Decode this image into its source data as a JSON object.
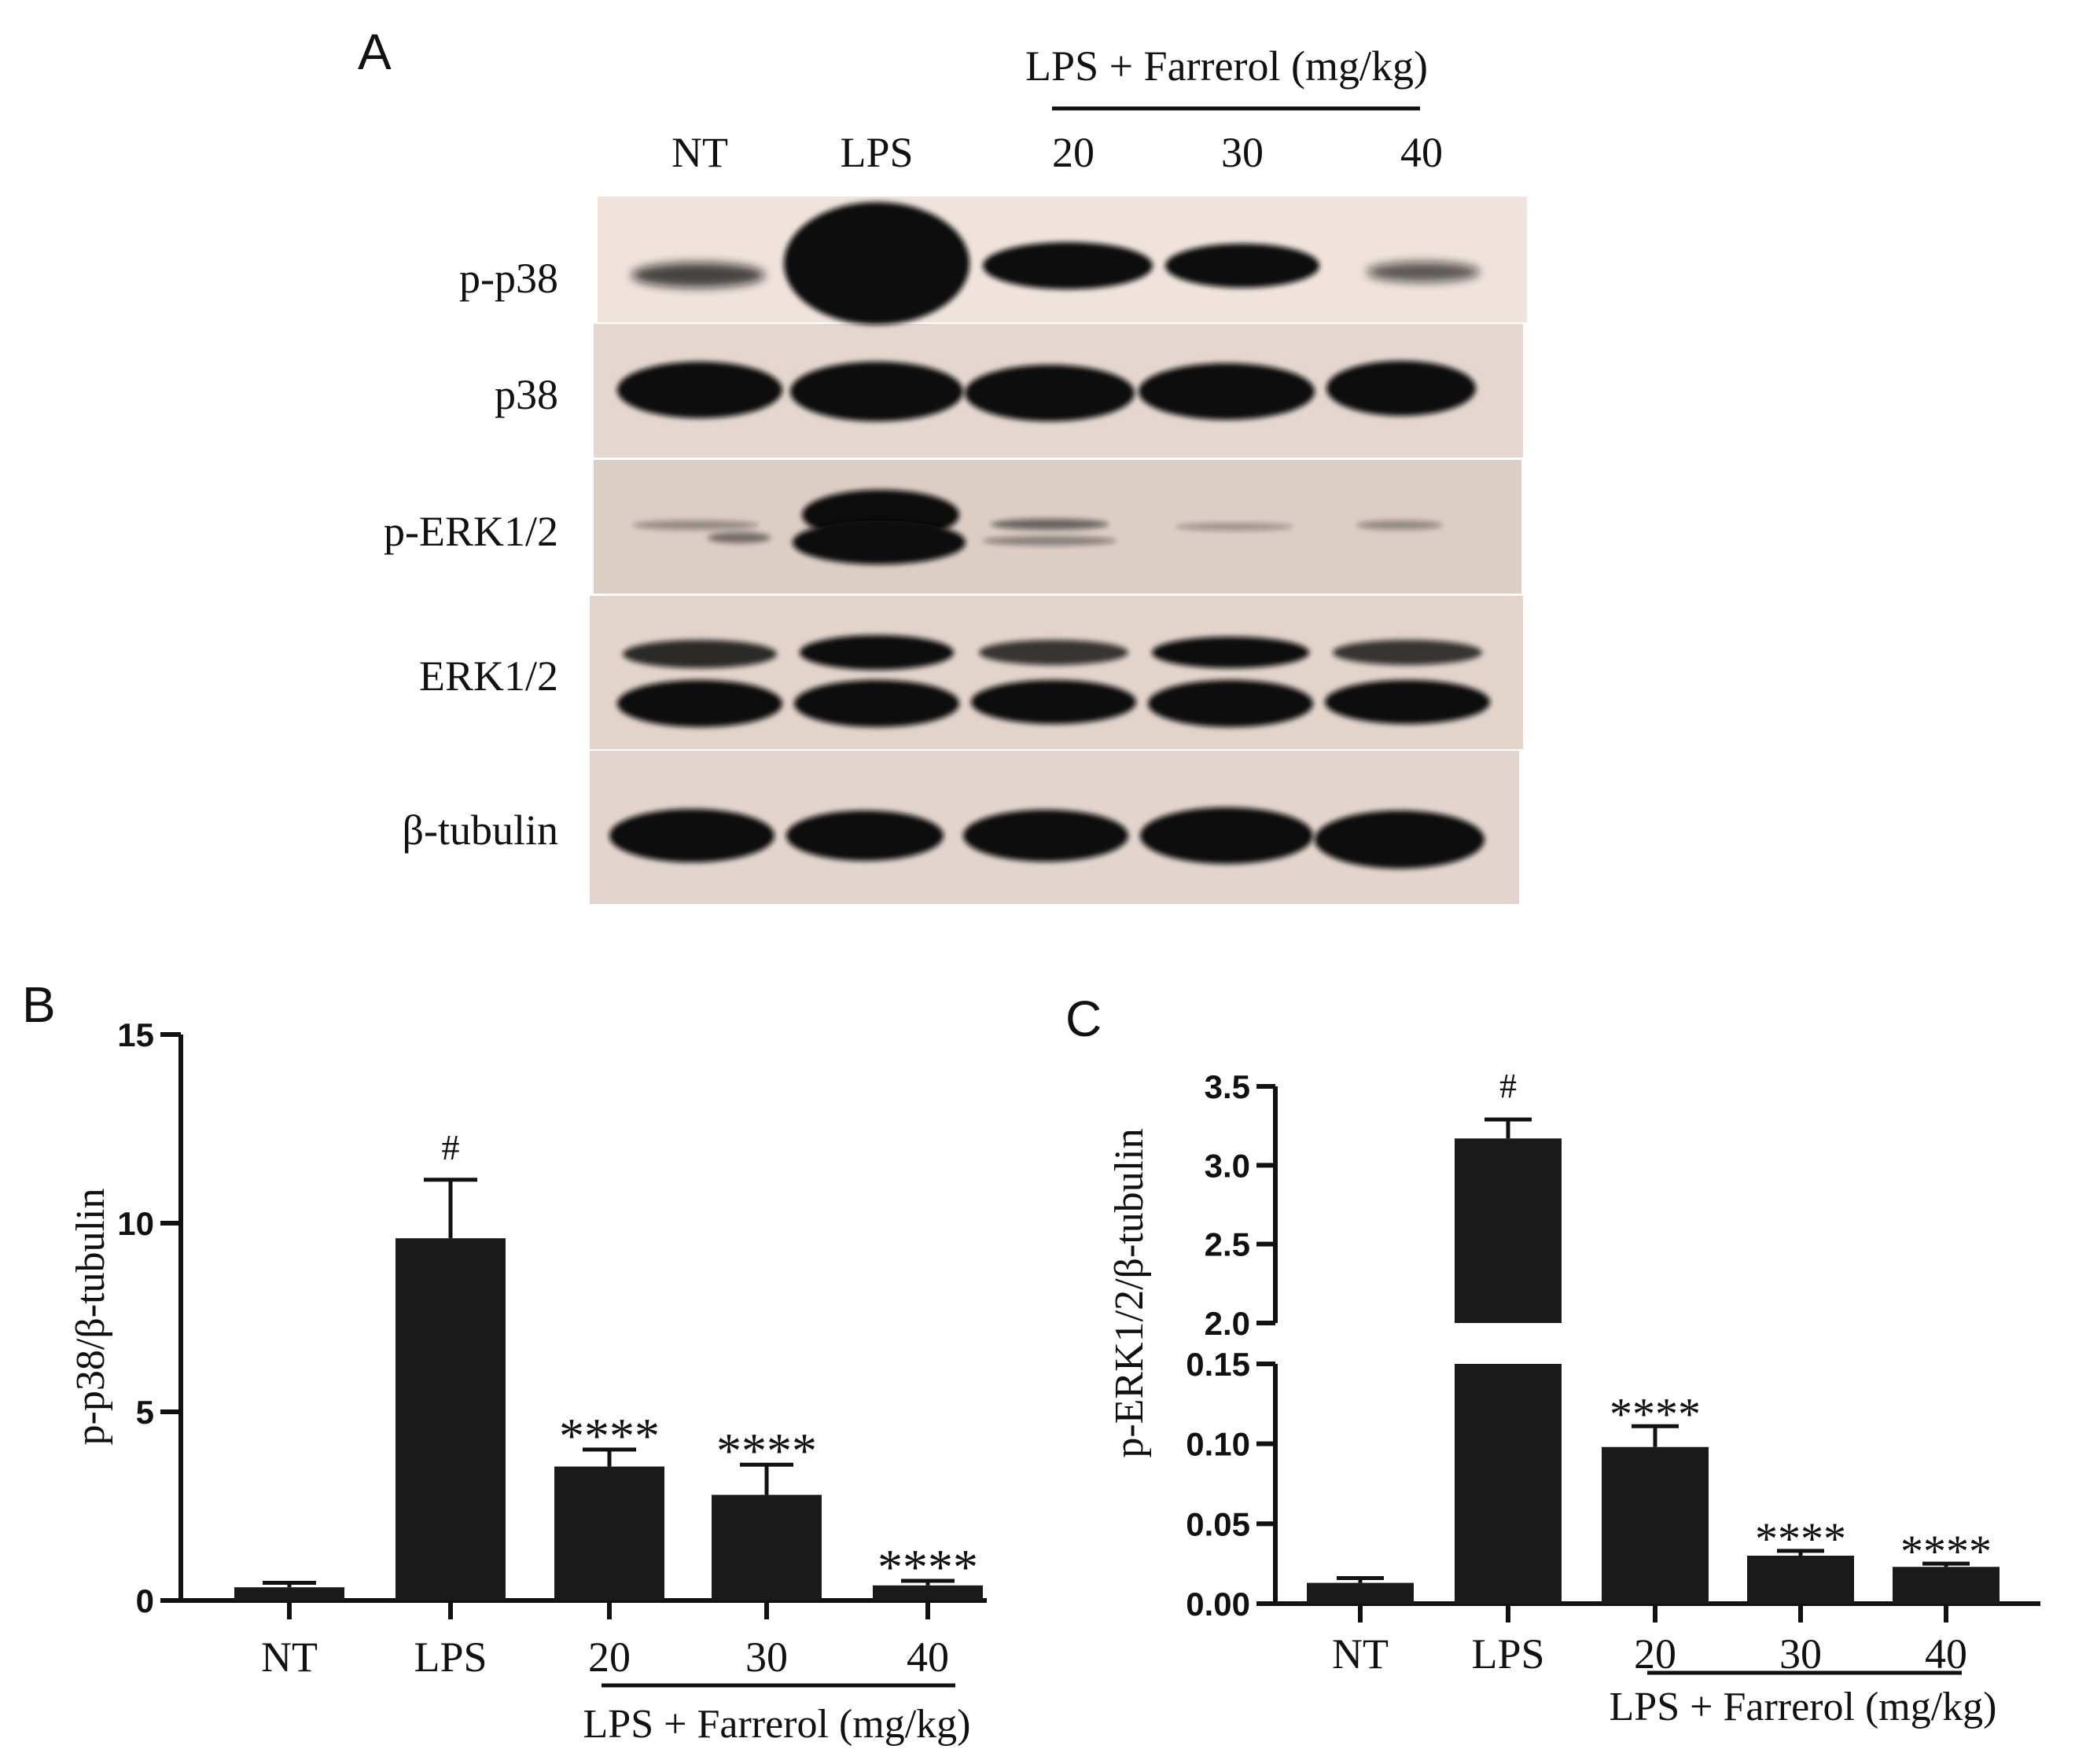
{
  "panel_a": {
    "letter": "A",
    "group_label": "LPS + Farrerol (mg/kg)",
    "lanes": [
      "NT",
      "LPS",
      "20",
      "30",
      "40"
    ],
    "rows": [
      "p-p38",
      "p38",
      "p-ERK1/2",
      "ERK1/2",
      "β-tubulin"
    ],
    "colors": {
      "membrane": "#e8d9d0",
      "band": "#0b0b0b"
    }
  },
  "chart_data": [
    {
      "panel": "B",
      "type": "bar",
      "categories": [
        "NT",
        "LPS",
        "20",
        "30",
        "40"
      ],
      "values": [
        0.35,
        9.6,
        3.55,
        2.8,
        0.4
      ],
      "errors": [
        0.12,
        1.55,
        0.45,
        0.8,
        0.12
      ],
      "significance": [
        "",
        "#",
        "****",
        "****",
        "****"
      ],
      "ylabel": "p-p38/β-tubulin",
      "xlabel": "LPS + Farrerol (mg/kg)",
      "ylim": [
        0,
        15
      ],
      "yticks": [
        "0",
        "5",
        "10",
        "15"
      ],
      "bar_color": "#1a1a1a",
      "grid": false
    },
    {
      "panel": "C",
      "type": "bar",
      "categories": [
        "NT",
        "LPS",
        "20",
        "30",
        "40"
      ],
      "values": [
        0.013,
        3.17,
        0.098,
        0.03,
        0.023
      ],
      "errors": [
        0.003,
        0.12,
        0.013,
        0.003,
        0.002
      ],
      "significance": [
        "",
        "#",
        "****",
        "****",
        "****"
      ],
      "ylabel": "p-ERK1/2/β-tubulin",
      "xlabel": "LPS + Farrerol (mg/kg)",
      "axis_break": true,
      "ylim_lower": [
        0,
        0.15
      ],
      "ylim_upper": [
        2.0,
        3.5
      ],
      "yticks_lower": [
        "0.00",
        "0.05",
        "0.10",
        "0.15"
      ],
      "yticks_upper": [
        "2.0",
        "2.5",
        "3.0",
        "3.5"
      ],
      "bar_color": "#1a1a1a",
      "grid": false
    }
  ]
}
